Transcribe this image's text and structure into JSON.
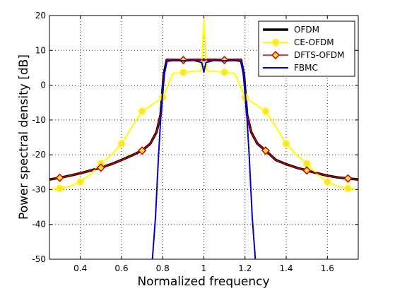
{
  "chart_data": {
    "type": "line",
    "xlabel": "Normalized frequency",
    "ylabel": "Power spectral density [dB]",
    "xlim": [
      0.25,
      1.75
    ],
    "ylim": [
      -50,
      20
    ],
    "xticks": [
      "0.4",
      "0.6",
      "0.8",
      "1",
      "1.2",
      "1.4",
      "1.6"
    ],
    "xtick_values": [
      0.4,
      0.6,
      0.8,
      1.0,
      1.2,
      1.4,
      1.6
    ],
    "yticks": [
      "-50",
      "-40",
      "-30",
      "-20",
      "-10",
      "0",
      "10",
      "20"
    ],
    "ytick_values": [
      -50,
      -40,
      -30,
      -20,
      -10,
      0,
      10,
      20
    ],
    "grid": true,
    "legend_position": "top-right",
    "series": [
      {
        "name": "OFDM",
        "color": "#000000",
        "marker": "none",
        "x": [
          0.25,
          0.3,
          0.35,
          0.4,
          0.45,
          0.5,
          0.55,
          0.6,
          0.65,
          0.7,
          0.74,
          0.77,
          0.79,
          0.805,
          0.82,
          0.85,
          0.9,
          0.95,
          1.0,
          1.05,
          1.1,
          1.15,
          1.18,
          1.195,
          1.21,
          1.23,
          1.26,
          1.3,
          1.35,
          1.4,
          1.45,
          1.5,
          1.55,
          1.6,
          1.65,
          1.7,
          1.75
        ],
        "y": [
          -27.1,
          -26.6,
          -26.0,
          -25.3,
          -24.5,
          -23.7,
          -22.7,
          -21.5,
          -20.2,
          -18.8,
          -16.8,
          -13.5,
          -8.5,
          3.0,
          7.3,
          7.3,
          7.2,
          7.3,
          7.3,
          7.3,
          7.2,
          7.3,
          7.3,
          3.0,
          -8.5,
          -13.5,
          -16.8,
          -18.8,
          -21.5,
          -22.7,
          -23.7,
          -24.5,
          -25.3,
          -26.0,
          -26.5,
          -26.8,
          -27.1
        ]
      },
      {
        "name": "CE-OFDM",
        "color": "#ffff00",
        "marker": "circle",
        "marker_x": [
          0.3,
          0.4,
          0.5,
          0.6,
          0.7,
          0.8,
          0.9,
          1.1,
          1.2,
          1.3,
          1.4,
          1.5,
          1.6,
          1.7
        ],
        "x": [
          0.25,
          0.3,
          0.35,
          0.4,
          0.45,
          0.5,
          0.55,
          0.6,
          0.65,
          0.7,
          0.75,
          0.8,
          0.85,
          0.9,
          0.95,
          0.985,
          0.993,
          1.0,
          1.007,
          1.015,
          1.05,
          1.1,
          1.15,
          1.2,
          1.25,
          1.3,
          1.35,
          1.4,
          1.45,
          1.5,
          1.55,
          1.6,
          1.65,
          1.7,
          1.75
        ],
        "y": [
          -30.0,
          -29.7,
          -29.0,
          -27.8,
          -25.5,
          -22.5,
          -20.0,
          -16.8,
          -12.0,
          -7.5,
          -5.5,
          -3.5,
          3.4,
          3.7,
          4.0,
          4.2,
          10.0,
          19.5,
          10.0,
          4.2,
          4.0,
          3.7,
          3.4,
          -3.5,
          -5.5,
          -7.5,
          -12.0,
          -16.8,
          -20.0,
          -22.5,
          -25.5,
          -27.8,
          -29.0,
          -29.7,
          -30.0
        ]
      },
      {
        "name": "DFTS-OFDM",
        "color": "#cc0000",
        "marker": "diamond",
        "marker_x": [
          0.3,
          0.5,
          0.7,
          0.9,
          1.1,
          1.3,
          1.5,
          1.7
        ],
        "x": [
          0.25,
          0.3,
          0.35,
          0.4,
          0.45,
          0.5,
          0.55,
          0.6,
          0.65,
          0.7,
          0.74,
          0.77,
          0.79,
          0.805,
          0.82,
          0.85,
          0.9,
          0.95,
          1.0,
          1.05,
          1.1,
          1.15,
          1.18,
          1.195,
          1.21,
          1.23,
          1.26,
          1.3,
          1.35,
          1.4,
          1.45,
          1.5,
          1.55,
          1.6,
          1.65,
          1.7,
          1.75
        ],
        "y": [
          -27.1,
          -26.6,
          -26.0,
          -25.3,
          -24.5,
          -23.7,
          -22.7,
          -21.5,
          -20.2,
          -18.8,
          -16.8,
          -13.5,
          -8.5,
          3.0,
          7.3,
          7.3,
          7.2,
          7.3,
          7.3,
          7.3,
          7.2,
          7.3,
          7.3,
          3.0,
          -8.5,
          -13.5,
          -16.8,
          -18.8,
          -21.5,
          -22.7,
          -23.7,
          -24.5,
          -25.3,
          -26.0,
          -26.5,
          -26.8,
          -27.1
        ]
      },
      {
        "name": "FBMC",
        "color": "#0000cc",
        "marker": "none",
        "x": [
          0.75,
          0.765,
          0.78,
          0.79,
          0.8,
          0.81,
          0.82,
          0.85,
          0.9,
          0.95,
          0.99,
          1.0,
          1.01,
          1.05,
          1.1,
          1.15,
          1.18,
          1.19,
          1.2,
          1.21,
          1.22,
          1.235,
          1.25
        ],
        "y": [
          -50.0,
          -38.0,
          -20.0,
          -10.0,
          -2.0,
          4.0,
          6.8,
          7.1,
          7.0,
          7.1,
          6.5,
          3.7,
          6.5,
          7.1,
          7.0,
          7.1,
          6.8,
          4.0,
          -2.0,
          -10.0,
          -20.0,
          -38.0,
          -50.0
        ]
      }
    ]
  }
}
